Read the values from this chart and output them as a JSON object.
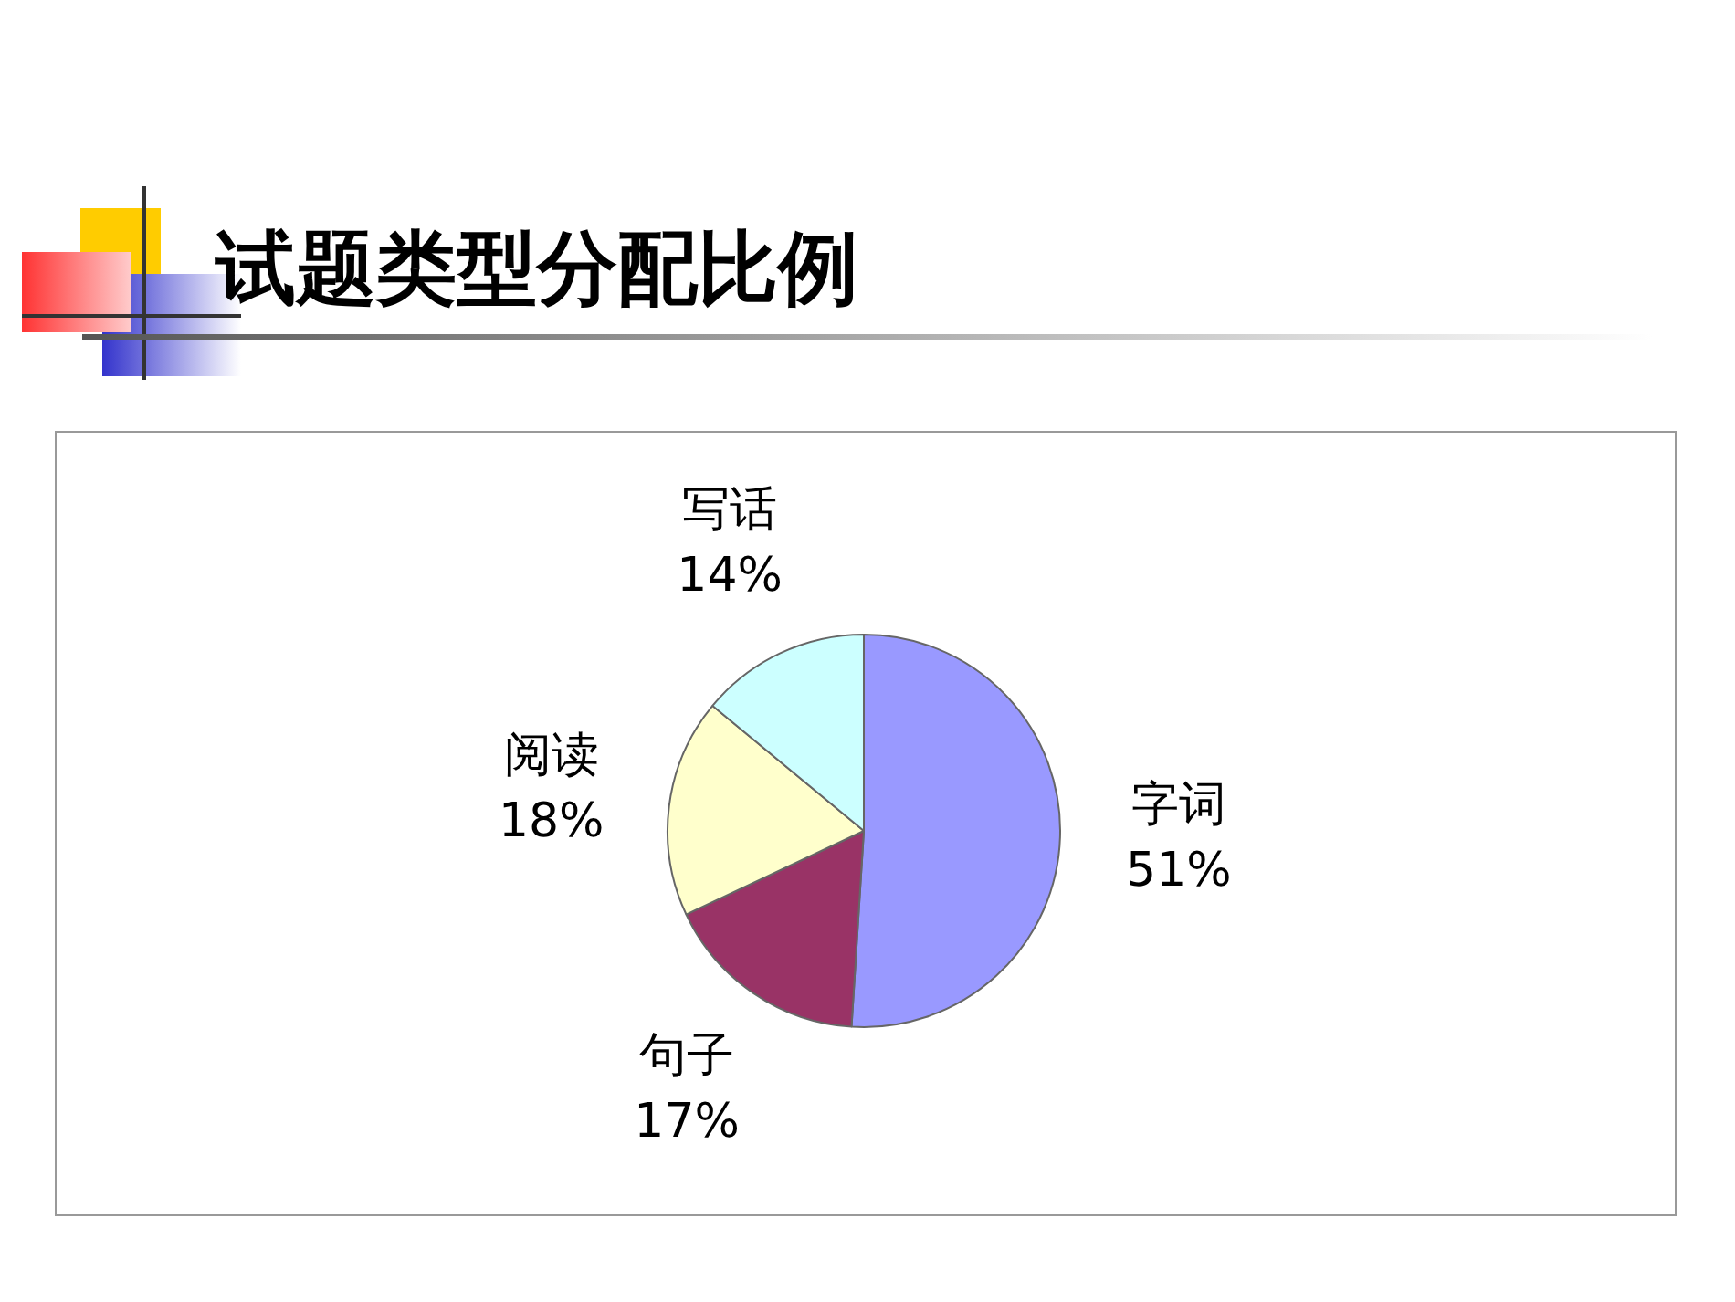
{
  "chart_data": {
    "type": "pie",
    "title": "试题类型分配比例",
    "categories": [
      "字词",
      "句子",
      "阅读",
      "写话"
    ],
    "values": [
      51,
      17,
      18,
      14
    ],
    "value_labels": [
      "51%",
      "17%",
      "18%",
      "14%"
    ],
    "colors": [
      "#9999ff",
      "#993366",
      "#ffffcc",
      "#ccffff"
    ],
    "legend": false
  }
}
